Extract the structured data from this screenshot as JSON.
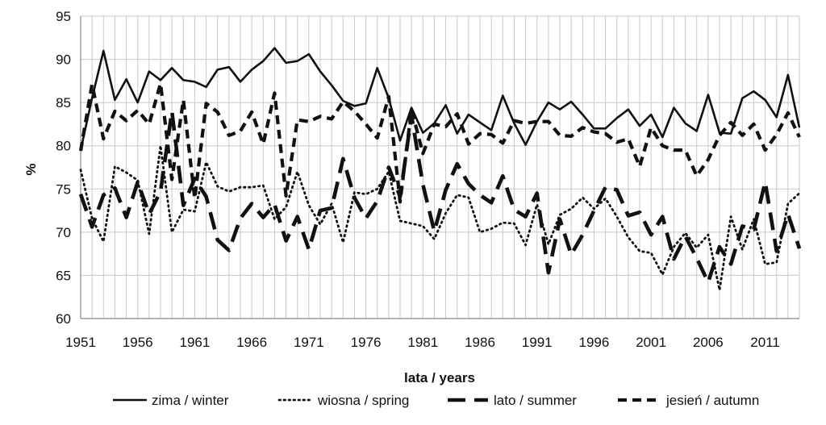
{
  "chart_data": {
    "type": "line",
    "xlabel": "lata / years",
    "ylabel": "%",
    "ylim": [
      60,
      95
    ],
    "yticks": [
      60,
      65,
      70,
      75,
      80,
      85,
      90,
      95
    ],
    "xlim": [
      1951,
      2014
    ],
    "xticks": [
      1951,
      1956,
      1961,
      1966,
      1971,
      1976,
      1981,
      1986,
      1991,
      1996,
      2001,
      2006,
      2011
    ],
    "grid": true,
    "legend_position": "bottom",
    "x": [
      1951,
      1952,
      1953,
      1954,
      1955,
      1956,
      1957,
      1958,
      1959,
      1960,
      1961,
      1962,
      1963,
      1964,
      1965,
      1966,
      1967,
      1968,
      1969,
      1970,
      1971,
      1972,
      1973,
      1974,
      1975,
      1976,
      1977,
      1978,
      1979,
      1980,
      1981,
      1982,
      1983,
      1984,
      1985,
      1986,
      1987,
      1988,
      1989,
      1990,
      1991,
      1992,
      1993,
      1994,
      1995,
      1996,
      1997,
      1998,
      1999,
      2000,
      2001,
      2002,
      2003,
      2004,
      2005,
      2006,
      2007,
      2008,
      2009,
      2010,
      2011,
      2012,
      2013,
      2014
    ],
    "series": [
      {
        "name": "zima / winter",
        "dash": "solid",
        "values": [
          79.5,
          85.5,
          91.0,
          85.3,
          87.7,
          85.0,
          88.6,
          87.6,
          89.0,
          87.6,
          87.4,
          86.8,
          88.8,
          89.1,
          87.4,
          88.8,
          89.8,
          91.3,
          89.6,
          89.8,
          90.6,
          88.6,
          87.0,
          85.2,
          84.6,
          84.9,
          89.0,
          85.5,
          80.6,
          84.4,
          81.5,
          82.6,
          84.7,
          81.4,
          83.6,
          82.7,
          81.8,
          85.8,
          82.6,
          80.1,
          82.8,
          85.0,
          84.2,
          85.1,
          83.6,
          82.0,
          82.0,
          83.2,
          84.2,
          82.3,
          83.6,
          81.0,
          84.4,
          82.6,
          81.7,
          85.9,
          81.5,
          81.4,
          85.5,
          86.3,
          85.3,
          83.3,
          88.2,
          82.1
        ]
      },
      {
        "name": "wiosna / spring",
        "dash": "dotted",
        "values": [
          77.2,
          71.6,
          68.9,
          77.6,
          76.9,
          76.0,
          69.8,
          80.0,
          70.0,
          72.6,
          72.4,
          78.1,
          75.3,
          74.7,
          75.2,
          75.2,
          75.4,
          71.5,
          72.9,
          77.0,
          73.1,
          70.9,
          73.3,
          68.8,
          74.6,
          74.4,
          75.0,
          77.0,
          71.3,
          71.0,
          70.7,
          69.2,
          72.2,
          74.3,
          74.0,
          70.0,
          70.4,
          71.1,
          71.0,
          68.5,
          73.2,
          68.6,
          72.0,
          72.7,
          74.0,
          72.7,
          73.9,
          71.8,
          69.4,
          67.8,
          67.6,
          65.1,
          68.3,
          69.9,
          68.2,
          69.7,
          63.3,
          71.8,
          68.0,
          71.5,
          66.3,
          66.5,
          73.3,
          74.5
        ]
      },
      {
        "name": "lato / summer",
        "dash": "long-dash",
        "values": [
          74.4,
          70.6,
          74.3,
          75.1,
          71.7,
          75.8,
          72.1,
          74.7,
          84.0,
          73.1,
          76.2,
          74.1,
          69.1,
          67.9,
          71.6,
          73.3,
          71.7,
          73.2,
          69.0,
          71.8,
          68.0,
          72.5,
          72.8,
          78.5,
          74.0,
          71.6,
          73.6,
          77.5,
          74.1,
          83.5,
          75.5,
          70.1,
          74.9,
          77.9,
          75.6,
          74.3,
          73.4,
          76.5,
          72.6,
          71.8,
          74.5,
          65.3,
          71.5,
          67.4,
          69.7,
          72.5,
          75.2,
          74.9,
          71.9,
          72.3,
          69.7,
          71.8,
          66.9,
          69.5,
          67.0,
          64.2,
          68.3,
          66.3,
          70.7,
          70.3,
          75.8,
          67.8,
          72.1,
          68.1
        ]
      },
      {
        "name": "jesień / autumn",
        "dash": "short-dash",
        "values": [
          79.4,
          87.1,
          80.8,
          84.0,
          82.9,
          84.1,
          82.5,
          87.2,
          76.1,
          85.3,
          73.9,
          84.9,
          83.9,
          81.2,
          81.7,
          83.9,
          80.2,
          86.1,
          74.2,
          83.0,
          82.8,
          83.4,
          83.1,
          85.1,
          84.0,
          82.5,
          80.9,
          85.7,
          73.5,
          84.2,
          79.1,
          82.5,
          82.2,
          83.7,
          80.2,
          81.4,
          81.3,
          80.3,
          82.9,
          82.6,
          82.8,
          82.8,
          81.2,
          81.1,
          82.1,
          81.6,
          81.4,
          80.4,
          80.8,
          77.6,
          82.1,
          80.0,
          79.5,
          79.5,
          76.5,
          78.4,
          81.2,
          82.7,
          81.2,
          82.5,
          79.5,
          81.3,
          83.8,
          81.0
        ]
      }
    ]
  }
}
